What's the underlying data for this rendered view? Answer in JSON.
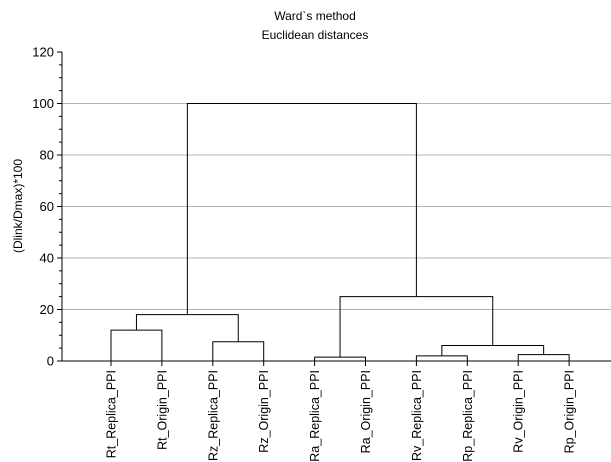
{
  "chart_data": {
    "type": "dendrogram",
    "title": "Ward`s method",
    "subtitle": "Euclidean distances",
    "xlabel": "",
    "ylabel": "(Dlink/Dmax)*100",
    "ylim": [
      0,
      120
    ],
    "yticks": [
      0,
      20,
      40,
      60,
      80,
      100,
      120
    ],
    "grid": true,
    "leaves": [
      "Rt_Replica_PPI",
      "Rt_Origin_PPI",
      "Rz_Replica_PPI",
      "Rz_Origin_PPI",
      "Ra_Replica_PPI",
      "Ra_Origin_PPI",
      "Rv_Replica_PPI",
      "Rp_Replica_PPI",
      "Rv_Origin_PPI",
      "Rp_Origin_PPI"
    ],
    "merges": [
      {
        "left": "Rt_Replica_PPI",
        "right": "Rt_Origin_PPI",
        "height": 12
      },
      {
        "left": "Rz_Replica_PPI",
        "right": "Rz_Origin_PPI",
        "height": 7.5
      },
      {
        "left": "Ra_Replica_PPI",
        "right": "Ra_Origin_PPI",
        "height": 1.5
      },
      {
        "left": "Rv_Replica_PPI",
        "right": "Rp_Replica_PPI",
        "height": 2
      },
      {
        "left": "Rv_Origin_PPI",
        "right": "Rp_Origin_PPI",
        "height": 2.5
      },
      {
        "left": "Rv_Replica_PPI+Rp_Replica_PPI",
        "right": "Rv_Origin_PPI+Rp_Origin_PPI",
        "height": 6
      },
      {
        "left": "Rt pair",
        "right": "Rz pair",
        "height": 18
      },
      {
        "left": "Ra pair",
        "right": "Rv/Rp group",
        "height": 25
      },
      {
        "left": "Rt/Rz group",
        "right": "Ra/Rv/Rp group",
        "height": 100
      }
    ]
  }
}
